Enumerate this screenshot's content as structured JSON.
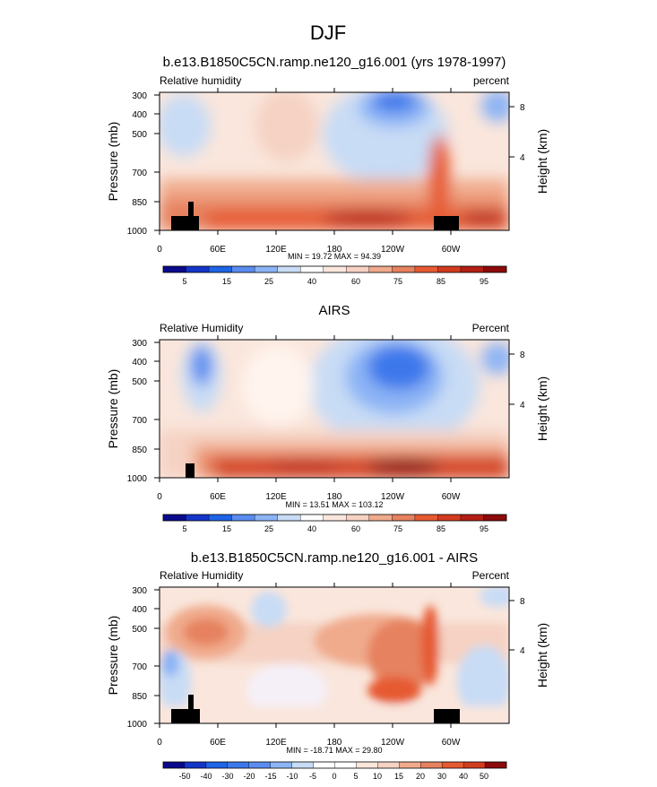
{
  "page_title": "DJF",
  "colors": {
    "blue_dark": "#0a0a8c",
    "blue": "#1e64e6",
    "blue_light": "#c8dcf5",
    "white": "#ffffff",
    "orange_light": "#f5d2c3",
    "orange": "#e65a32",
    "red_dark": "#8c0a0a",
    "land_mask": "#000000"
  },
  "chart_data": [
    {
      "type": "heatmap",
      "title": "b.e13.B1850C5CN.ramp.ne120_g16.001 (yrs 1978-1997)",
      "left_label": "Relative humidity",
      "right_label": "percent",
      "ylabel": "Pressure (mb)",
      "ylabel_right": "Height (km)",
      "x_ticks": [
        "0",
        "60E",
        "120E",
        "180",
        "120W",
        "60W"
      ],
      "y_ticks": [
        "300",
        "400",
        "500",
        "700",
        "850",
        "1000"
      ],
      "y_ticks_right": [
        "8",
        "4"
      ],
      "stats": "MIN = 19.72  MAX = 94.39",
      "colorbar_labels": [
        "5",
        "15",
        "25",
        "40",
        "60",
        "75",
        "85",
        "95"
      ],
      "colorbar_colors": [
        "#0a0a8c",
        "#1435c8",
        "#1e64e6",
        "#5a8cf0",
        "#8cb4f5",
        "#c8dcf5",
        "#ffffff",
        "#fae6dc",
        "#f5d2c3",
        "#f0aa8c",
        "#e6825f",
        "#e65a32",
        "#d23c1e",
        "#b41e14",
        "#8c0a0a"
      ],
      "plot_area": {
        "x": 178,
        "y": 103,
        "w": 390,
        "h": 154
      },
      "colorbar_area": {
        "x": 182,
        "y": 297,
        "w": 383,
        "h": 7
      }
    },
    {
      "type": "heatmap",
      "title": "AIRS",
      "left_label": "Relative Humidity",
      "right_label": "Percent",
      "ylabel": "Pressure (mb)",
      "ylabel_right": "Height (km)",
      "x_ticks": [
        "0",
        "60E",
        "120E",
        "180",
        "120W",
        "60W"
      ],
      "y_ticks": [
        "300",
        "400",
        "500",
        "700",
        "850",
        "1000"
      ],
      "y_ticks_right": [
        "8",
        "4"
      ],
      "stats": "MIN = 13.51  MAX = 103.12",
      "colorbar_labels": [
        "5",
        "15",
        "25",
        "40",
        "60",
        "75",
        "85",
        "95"
      ],
      "colorbar_colors": [
        "#0a0a8c",
        "#1435c8",
        "#1e64e6",
        "#5a8cf0",
        "#8cb4f5",
        "#c8dcf5",
        "#ffffff",
        "#fae6dc",
        "#f5d2c3",
        "#f0aa8c",
        "#e6825f",
        "#e65a32",
        "#d23c1e",
        "#b41e14",
        "#8c0a0a"
      ],
      "plot_area": {
        "x": 178,
        "y": 379,
        "w": 390,
        "h": 154
      },
      "colorbar_area": {
        "x": 182,
        "y": 574,
        "w": 383,
        "h": 7
      }
    },
    {
      "type": "heatmap",
      "title": "b.e13.B1850C5CN.ramp.ne120_g16.001 - AIRS",
      "left_label": "Relative Humidity",
      "right_label": "Percent",
      "ylabel": "Pressure (mb)",
      "ylabel_right": "Height (km)",
      "x_ticks": [
        "0",
        "60E",
        "120E",
        "180",
        "120W",
        "60W"
      ],
      "y_ticks": [
        "300",
        "400",
        "500",
        "700",
        "850",
        "1000"
      ],
      "y_ticks_right": [
        "8",
        "4"
      ],
      "stats": "MIN = -18.71  MAX = 29.80",
      "colorbar_labels": [
        "-50",
        "-40",
        "-30",
        "-20",
        "-15",
        "-10",
        "-5",
        "0",
        "5",
        "10",
        "15",
        "20",
        "30",
        "40",
        "50"
      ],
      "colorbar_colors": [
        "#0a0a8c",
        "#1435c8",
        "#1e64e6",
        "#3c78eb",
        "#5a8cf0",
        "#8cb4f5",
        "#c8dcf5",
        "#ffffff",
        "#ffffff",
        "#fae6dc",
        "#f5d2c3",
        "#f0aa8c",
        "#e6825f",
        "#e65a32",
        "#d23c1e",
        "#8c0a0a"
      ],
      "plot_area": {
        "x": 178,
        "y": 655,
        "w": 390,
        "h": 152
      },
      "colorbar_area": {
        "x": 182,
        "y": 850,
        "w": 383,
        "h": 7
      }
    }
  ]
}
